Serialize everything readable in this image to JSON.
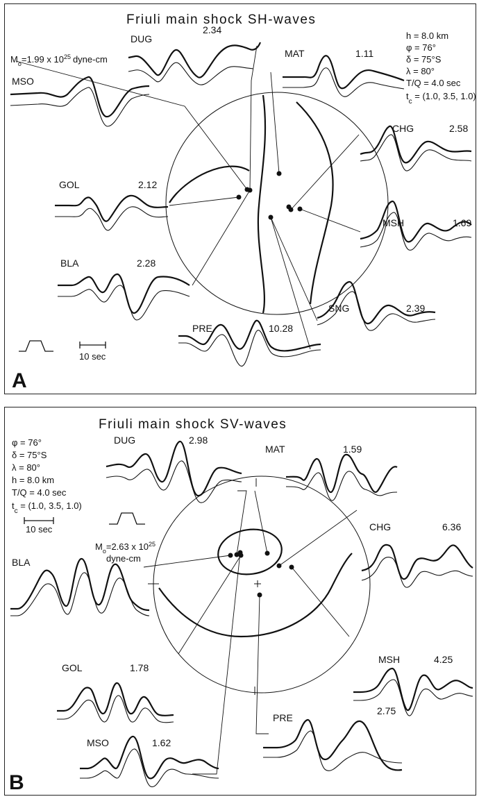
{
  "panels": [
    {
      "letter": "A",
      "title": "Friuli main shock SH-waves",
      "moment": {
        "prefix": "M",
        "sub": "o",
        "text": "=1.99 x 10",
        "exp": "25",
        "unit": "dyne-cm"
      },
      "params": [
        {
          "pre": "h = 8.0 km"
        },
        {
          "pre": "φ = 76°"
        },
        {
          "pre": "δ = 75°S"
        },
        {
          "pre": "λ = 80°"
        },
        {
          "pre": "T/Q = 4.0 sec"
        },
        {
          "pre": "t",
          "sub": "c",
          "post": " = (1.0, 3.5, 1.0)"
        }
      ],
      "scale_label": "10 sec",
      "stations": [
        {
          "name": "DUG",
          "amplitude": "2.34"
        },
        {
          "name": "MAT",
          "amplitude": "1.11"
        },
        {
          "name": "MSO",
          "amplitude": ""
        },
        {
          "name": "CHG",
          "amplitude": "2.58"
        },
        {
          "name": "GOL",
          "amplitude": "2.12"
        },
        {
          "name": "MSH",
          "amplitude": "1.69"
        },
        {
          "name": "BLA",
          "amplitude": "2.28"
        },
        {
          "name": "SNG",
          "amplitude": "2.39"
        },
        {
          "name": "PRE",
          "amplitude": "10.28"
        }
      ]
    },
    {
      "letter": "B",
      "title": "Friuli main shock SV-waves",
      "moment": {
        "prefix": "M",
        "sub": "o",
        "text": "=2.63 x 10",
        "exp": "25",
        "unit": "dyne-cm"
      },
      "params": [
        {
          "pre": "φ = 76°"
        },
        {
          "pre": "δ = 75°S"
        },
        {
          "pre": "λ = 80°"
        },
        {
          "pre": "h = 8.0 km"
        },
        {
          "pre": "T/Q = 4.0 sec"
        },
        {
          "pre": "t",
          "sub": "c",
          "post": " = (1.0, 3.5, 1.0)"
        }
      ],
      "scale_label": "10 sec",
      "stations": [
        {
          "name": "DUG",
          "amplitude": "2.98"
        },
        {
          "name": "MAT",
          "amplitude": "1.59"
        },
        {
          "name": "CHG",
          "amplitude": "6.36"
        },
        {
          "name": "BLA",
          "amplitude": ""
        },
        {
          "name": "MSH",
          "amplitude": "4.25"
        },
        {
          "name": "GOL",
          "amplitude": "1.78"
        },
        {
          "name": "PRE",
          "amplitude": "2.75"
        },
        {
          "name": "MSO",
          "amplitude": "1.62"
        }
      ]
    }
  ]
}
